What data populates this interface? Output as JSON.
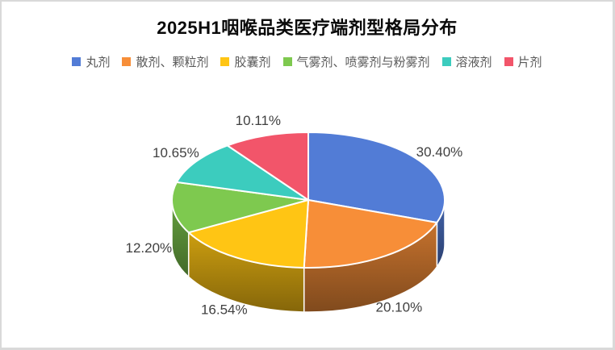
{
  "page": {
    "background": "#ffffff",
    "frame_border_color": "#d9d9d9"
  },
  "chart_data": {
    "type": "pie",
    "is_3d": true,
    "title": "2025H1咽喉品类医疗端剂型格局分布",
    "title_color": "#0a0a0a",
    "legend_position": "top",
    "legend_text_color": "#595959",
    "label_color": "#404040",
    "start_angle_deg": 0,
    "direction": "clockwise",
    "slices": [
      {
        "label": "丸剂",
        "value": 30.4,
        "display": "30.40%",
        "color": "#527CD6"
      },
      {
        "label": "散剂、颗粒剂",
        "value": 20.1,
        "display": "20.10%",
        "color": "#F78E38"
      },
      {
        "label": "胶囊剂",
        "value": 16.54,
        "display": "16.54%",
        "color": "#FFC514"
      },
      {
        "label": "气雾剂、喷雾剂与粉雾剂",
        "value": 12.2,
        "display": "12.20%",
        "color": "#7EC94F"
      },
      {
        "label": "溶液剂",
        "value": 10.65,
        "display": "10.65%",
        "color": "#3CCCBE"
      },
      {
        "label": "片剂",
        "value": 10.11,
        "display": "10.11%",
        "color": "#F2556A"
      }
    ]
  }
}
